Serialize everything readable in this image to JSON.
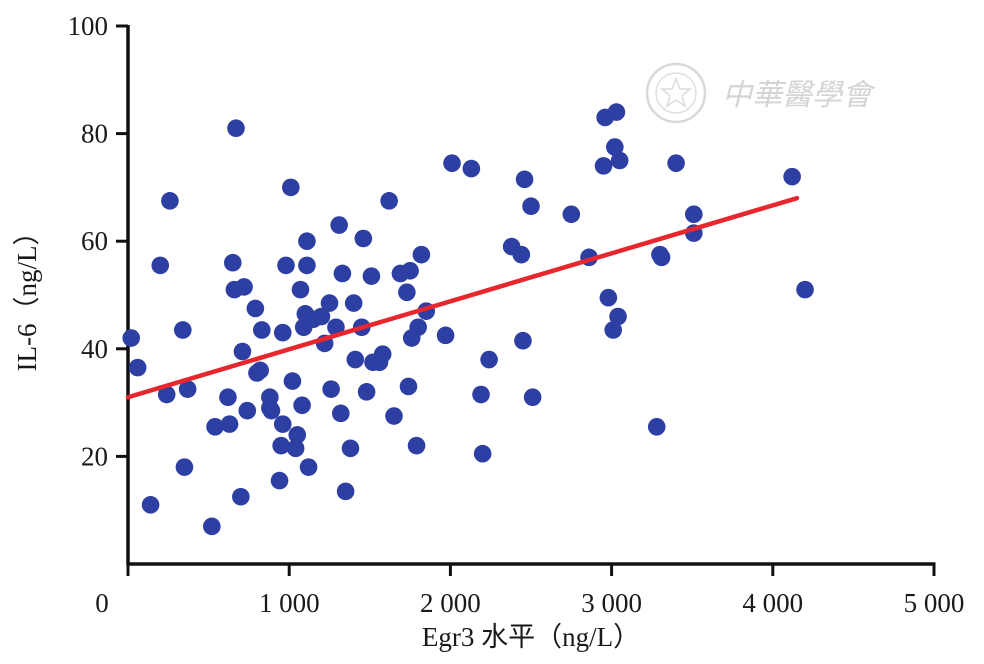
{
  "watermark": {
    "text": "中華醫學會"
  },
  "chart_data": {
    "type": "scatter",
    "xlabel": "Egr3 水平（ng/L）",
    "ylabel": "IL-6（ng/L）",
    "xlim": [
      0,
      5000
    ],
    "ylim": [
      0,
      100
    ],
    "x_ticks": [
      0,
      1000,
      2000,
      3000,
      4000,
      5000
    ],
    "x_tick_labels": [
      "0",
      "1 000",
      "2 000",
      "3 000",
      "4 000",
      "5 000"
    ],
    "y_ticks": [
      20,
      40,
      60,
      80,
      100
    ],
    "y_tick_labels": [
      "20",
      "40",
      "60",
      "80",
      "100"
    ],
    "grid": false,
    "point_color": "#2e3fa3",
    "line_color": "#e8262d",
    "trend_line": {
      "x": [
        0,
        4150
      ],
      "y": [
        31,
        68
      ]
    },
    "points": [
      [
        20,
        42
      ],
      [
        60,
        36.5
      ],
      [
        140,
        11
      ],
      [
        200,
        55.5
      ],
      [
        240,
        31.5
      ],
      [
        260,
        67.5
      ],
      [
        340,
        43.5
      ],
      [
        350,
        18
      ],
      [
        370,
        32.5
      ],
      [
        520,
        7
      ],
      [
        540,
        25.5
      ],
      [
        620,
        31
      ],
      [
        630,
        26
      ],
      [
        650,
        56
      ],
      [
        660,
        51
      ],
      [
        670,
        81
      ],
      [
        700,
        12.5
      ],
      [
        710,
        39.5
      ],
      [
        720,
        51.5
      ],
      [
        740,
        28.5
      ],
      [
        790,
        47.5
      ],
      [
        800,
        35.5
      ],
      [
        820,
        36
      ],
      [
        830,
        43.5
      ],
      [
        880,
        31
      ],
      [
        880,
        29
      ],
      [
        890,
        28.5
      ],
      [
        940,
        15.5
      ],
      [
        950,
        22
      ],
      [
        960,
        26
      ],
      [
        960,
        43
      ],
      [
        980,
        55.5
      ],
      [
        1010,
        70
      ],
      [
        1020,
        34
      ],
      [
        1040,
        21.5
      ],
      [
        1050,
        24
      ],
      [
        1070,
        51
      ],
      [
        1080,
        29.5
      ],
      [
        1090,
        44
      ],
      [
        1100,
        46.5
      ],
      [
        1110,
        60
      ],
      [
        1110,
        55.5
      ],
      [
        1120,
        18
      ],
      [
        1150,
        45.5
      ],
      [
        1200,
        46
      ],
      [
        1220,
        41
      ],
      [
        1250,
        48.5
      ],
      [
        1260,
        32.5
      ],
      [
        1290,
        44
      ],
      [
        1310,
        63
      ],
      [
        1320,
        28
      ],
      [
        1330,
        54
      ],
      [
        1350,
        13.5
      ],
      [
        1380,
        21.5
      ],
      [
        1400,
        48.5
      ],
      [
        1410,
        38
      ],
      [
        1450,
        44
      ],
      [
        1460,
        60.5
      ],
      [
        1480,
        32
      ],
      [
        1510,
        53.5
      ],
      [
        1520,
        37.5
      ],
      [
        1560,
        37.5
      ],
      [
        1580,
        39
      ],
      [
        1620,
        67.5
      ],
      [
        1650,
        27.5
      ],
      [
        1690,
        54
      ],
      [
        1730,
        50.5
      ],
      [
        1740,
        33
      ],
      [
        1750,
        54.5
      ],
      [
        1760,
        42
      ],
      [
        1790,
        22
      ],
      [
        1800,
        44
      ],
      [
        1820,
        57.5
      ],
      [
        1850,
        47
      ],
      [
        1970,
        42.5
      ],
      [
        2010,
        74.5
      ],
      [
        2130,
        73.5
      ],
      [
        2190,
        31.5
      ],
      [
        2200,
        20.5
      ],
      [
        2240,
        38
      ],
      [
        2380,
        59
      ],
      [
        2440,
        57.5
      ],
      [
        2450,
        41.5
      ],
      [
        2460,
        71.5
      ],
      [
        2500,
        66.5
      ],
      [
        2510,
        31
      ],
      [
        2750,
        65
      ],
      [
        2860,
        57
      ],
      [
        2950,
        74
      ],
      [
        2960,
        83
      ],
      [
        2980,
        49.5
      ],
      [
        3010,
        43.5
      ],
      [
        3020,
        77.5
      ],
      [
        3030,
        84
      ],
      [
        3040,
        46
      ],
      [
        3050,
        75
      ],
      [
        3280,
        25.5
      ],
      [
        3300,
        57.5
      ],
      [
        3310,
        57
      ],
      [
        3400,
        74.5
      ],
      [
        3510,
        65
      ],
      [
        3510,
        61.5
      ],
      [
        4120,
        72
      ],
      [
        4200,
        51
      ]
    ]
  }
}
